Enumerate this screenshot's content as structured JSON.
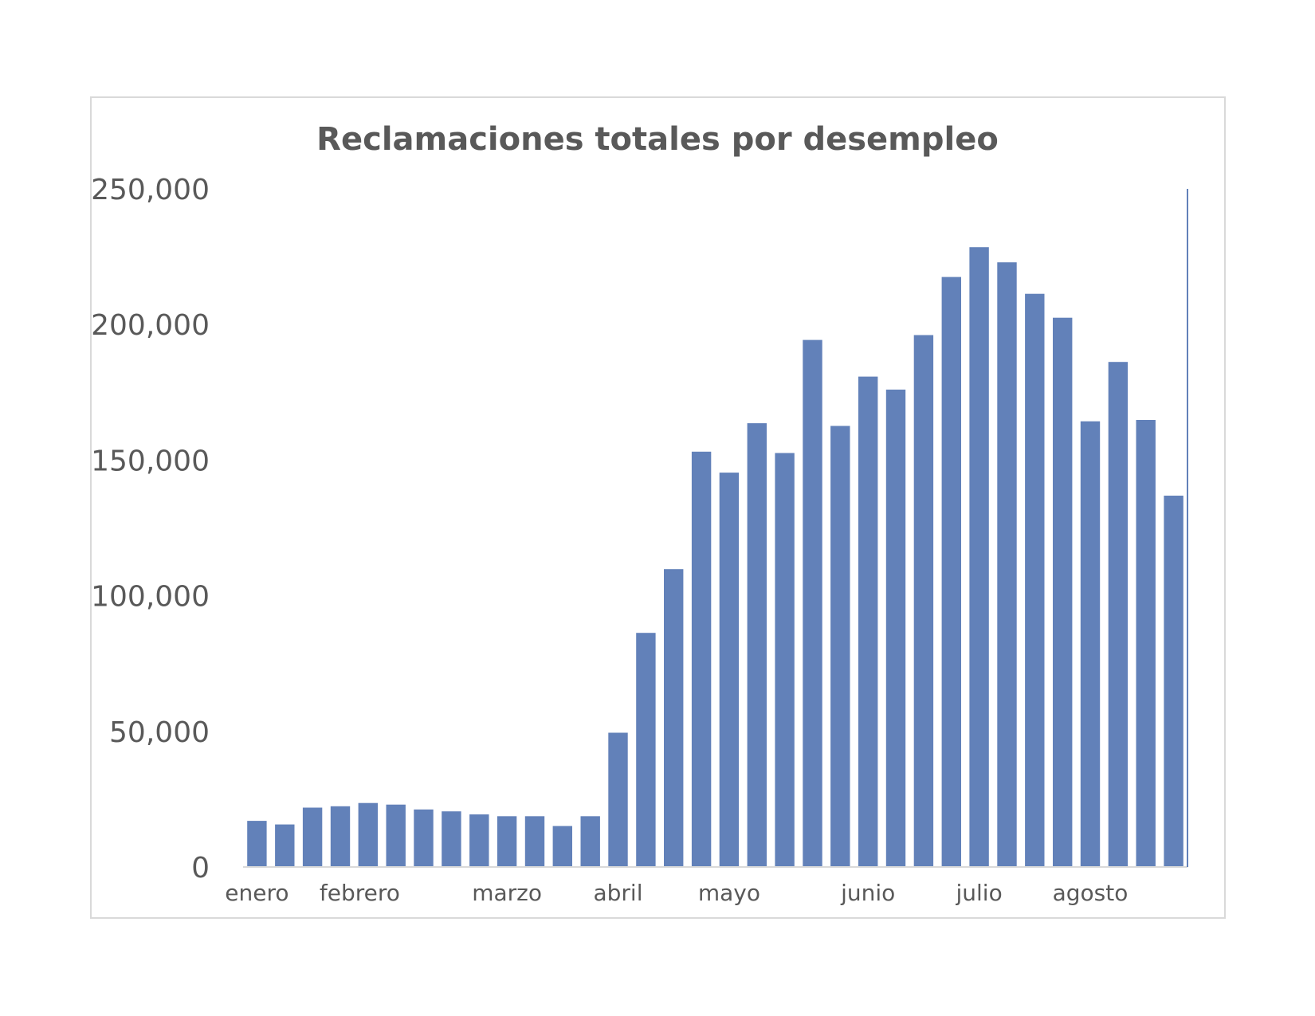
{
  "chart_data": {
    "type": "bar",
    "title": "Reclamaciones totales por desempleo",
    "xlabel": "",
    "ylabel": "",
    "ylim": [
      0,
      250000
    ],
    "yticks": [
      0,
      50000,
      100000,
      150000,
      200000,
      250000
    ],
    "ytick_labels": [
      "0",
      "50,000",
      "100,000",
      "150,000",
      "200,000",
      "250,000"
    ],
    "x_tick_labels": [
      {
        "label": "enero",
        "bar_index": 0.5
      },
      {
        "label": "febrero",
        "bar_index": 4.2
      },
      {
        "label": "marzo",
        "bar_index": 9.5
      },
      {
        "label": "abril",
        "bar_index": 13.5
      },
      {
        "label": "mayo",
        "bar_index": 17.5
      },
      {
        "label": "junio",
        "bar_index": 22.5
      },
      {
        "label": "julio",
        "bar_index": 26.5
      },
      {
        "label": "agosto",
        "bar_index": 30.5
      }
    ],
    "values": [
      17000,
      15700,
      21900,
      22400,
      23600,
      23000,
      21200,
      20500,
      19400,
      18700,
      18700,
      15100,
      18700,
      49500,
      86300,
      109800,
      153100,
      145400,
      163600,
      152600,
      194300,
      162600,
      180800,
      176000,
      196100,
      217500,
      228500,
      222900,
      211300,
      202500,
      164300,
      186200,
      164800,
      136900
    ],
    "grid": false,
    "legend": "none",
    "colors": {
      "bar": "#6281b9",
      "text": "#595959",
      "axis": "#d9d9d9",
      "right_line": "#6281b9"
    }
  }
}
